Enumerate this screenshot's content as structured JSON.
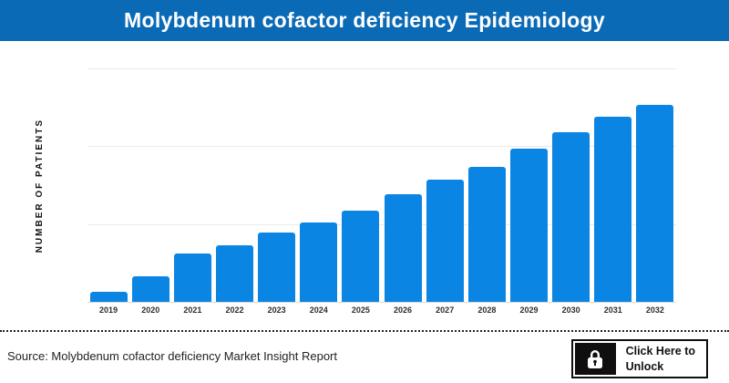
{
  "header": {
    "title": "Molybdenum cofactor deficiency Epidemiology",
    "bg_color": "#0b6ab5",
    "text_color": "#ffffff"
  },
  "chart": {
    "y_axis_label": "NUMBER OF PATIENTS",
    "bar_color": "#0b85e4"
  },
  "chart_data": {
    "type": "bar",
    "title": "Molybdenum cofactor deficiency Epidemiology",
    "xlabel": "",
    "ylabel": "NUMBER OF PATIENTS",
    "categories": [
      "2019",
      "2020",
      "2021",
      "2022",
      "2023",
      "2024",
      "2025",
      "2026",
      "2027",
      "2028",
      "2029",
      "2030",
      "2031",
      "2032"
    ],
    "values_relative_to_max_pct": [
      5.1,
      13.0,
      24.5,
      28.7,
      35.2,
      40.3,
      46.3,
      54.6,
      62.0,
      68.5,
      77.8,
      86.1,
      94.0,
      100.0
    ],
    "value_axis_note": "y-axis tick values are hidden in the figure; values estimated as percent of the tallest (2032) bar",
    "grid": "3 light horizontal gridlines, no y tick labels",
    "legend": "none"
  },
  "footer": {
    "source_text": "Source: Molybdenum cofactor deficiency Market Insight Report",
    "unlock_button": {
      "icon": "lock-icon",
      "label_line1": "Click Here to",
      "label_line2": "Unlock"
    }
  }
}
